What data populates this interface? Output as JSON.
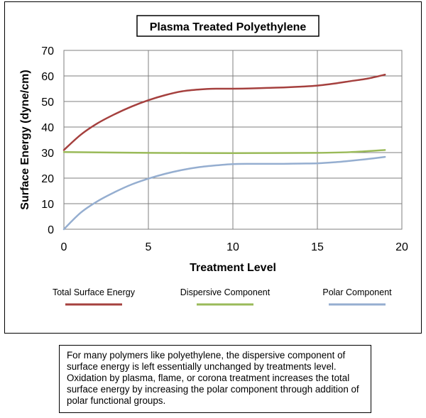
{
  "chart_data": {
    "type": "line",
    "title": "Plasma Treated Polyethylene",
    "xlabel": "Treatment Level",
    "ylabel": "Surface Energy (dyne/cm)",
    "xlim": [
      0,
      20
    ],
    "ylim": [
      0,
      70
    ],
    "x_ticks": [
      "0",
      "5",
      "10",
      "15",
      "20"
    ],
    "y_ticks": [
      "0",
      "10",
      "20",
      "30",
      "40",
      "50",
      "60",
      "70"
    ],
    "grid": true,
    "legend_position": "bottom",
    "series": [
      {
        "name": "Total Surface Energy",
        "color": "#a5403e",
        "x": [
          0,
          1,
          2,
          3,
          4,
          5,
          6,
          7,
          8,
          9,
          10,
          11,
          12,
          13,
          14,
          15,
          16,
          17,
          18,
          19
        ],
        "y": [
          31,
          37,
          41.5,
          45,
          48,
          50.5,
          52.5,
          54,
          54.7,
          55,
          55,
          55.1,
          55.3,
          55.5,
          55.8,
          56.2,
          57,
          58,
          59,
          60.5
        ]
      },
      {
        "name": "Dispersive Component",
        "color": "#9aba59",
        "x": [
          0,
          5,
          10,
          15,
          17,
          19
        ],
        "y": [
          30.2,
          29.9,
          29.8,
          29.9,
          30.2,
          31
        ]
      },
      {
        "name": "Polar Component",
        "color": "#95aed0",
        "x": [
          0,
          1,
          2,
          3,
          4,
          5,
          6,
          7,
          8,
          9,
          10,
          11,
          12,
          13,
          14,
          15,
          16,
          17,
          18,
          19
        ],
        "y": [
          0,
          6.5,
          11,
          14.5,
          17.5,
          19.8,
          21.7,
          23.2,
          24.3,
          25,
          25.5,
          25.6,
          25.6,
          25.6,
          25.7,
          25.8,
          26.2,
          26.8,
          27.5,
          28.3
        ]
      }
    ]
  },
  "caption_text": "For many polymers like polyethylene, the dispersive component of surface energy is left essentially unchanged by treatments level. Oxidation by plasma, flame, or corona treatment increases the total surface energy by increasing the polar component through addition of polar functional groups."
}
